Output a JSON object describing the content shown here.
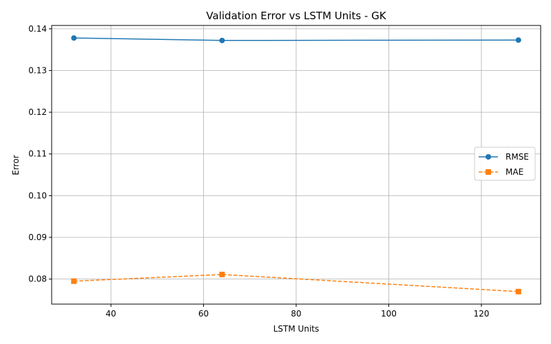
{
  "chart_data": {
    "type": "line",
    "title": "Validation Error vs LSTM Units - GK",
    "xlabel": "LSTM Units",
    "ylabel": "Error",
    "x": [
      32,
      64,
      128
    ],
    "xlim": [
      27.2,
      132.8
    ],
    "ylim": [
      0.074,
      0.1408
    ],
    "xticks": [
      40,
      60,
      80,
      100,
      120
    ],
    "yticks": [
      0.08,
      0.09,
      0.1,
      0.11,
      0.12,
      0.13,
      0.14
    ],
    "ytick_labels": [
      "0.08",
      "0.09",
      "0.10",
      "0.11",
      "0.12",
      "0.13",
      "0.14"
    ],
    "grid": true,
    "legend_position": "center-right",
    "series": [
      {
        "name": "RMSE",
        "values": [
          0.1378,
          0.1372,
          0.1373
        ],
        "color": "#1f77b4",
        "marker": "circle",
        "linestyle": "solid"
      },
      {
        "name": "MAE",
        "values": [
          0.0795,
          0.0811,
          0.077
        ],
        "color": "#ff7f0e",
        "marker": "square",
        "linestyle": "dashed"
      }
    ]
  }
}
